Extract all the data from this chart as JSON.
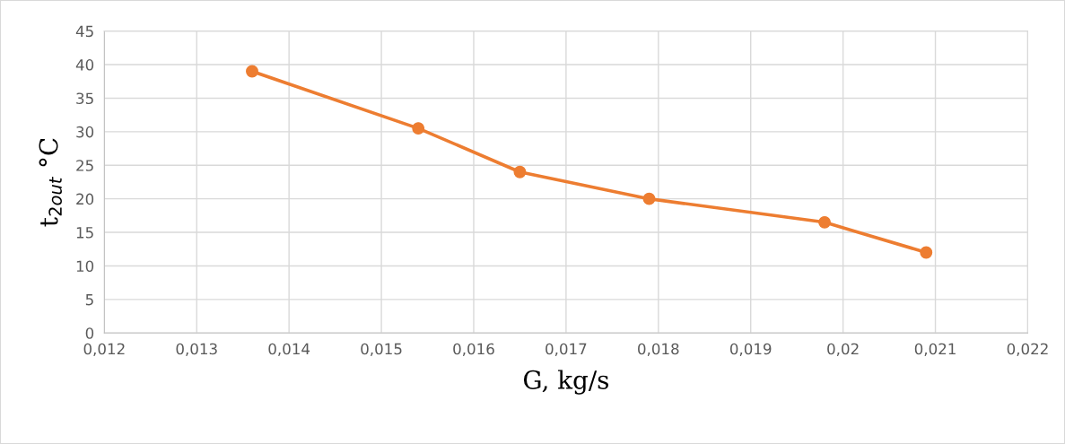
{
  "chart_data": {
    "type": "line",
    "xlabel": "G, kg/s",
    "ylabel": "t$_{2out}$ °C",
    "x": [
      0.0136,
      0.0154,
      0.0165,
      0.0179,
      0.0198,
      0.0209
    ],
    "series": [
      {
        "color": "#ed7d31",
        "values": [
          39,
          30.5,
          24,
          20,
          16.5,
          12
        ]
      }
    ],
    "xlim": [
      0.012,
      0.022
    ],
    "xticks": [
      {
        "value": 0.012,
        "label": "0,012"
      },
      {
        "value": 0.013,
        "label": "0,013"
      },
      {
        "value": 0.014,
        "label": "0,014"
      },
      {
        "value": 0.015,
        "label": "0,015"
      },
      {
        "value": 0.016,
        "label": "0,016"
      },
      {
        "value": 0.017,
        "label": "0,017"
      },
      {
        "value": 0.018,
        "label": "0,018"
      },
      {
        "value": 0.019,
        "label": "0,019"
      },
      {
        "value": 0.02,
        "label": "0,02"
      },
      {
        "value": 0.021,
        "label": "0,021"
      },
      {
        "value": 0.022,
        "label": "0,022"
      }
    ],
    "ylim": [
      0,
      45
    ],
    "yticks": [
      0,
      5,
      10,
      15,
      20,
      25,
      30,
      35,
      40,
      45
    ],
    "grid": true,
    "marker": "circle",
    "line_style": "solid"
  }
}
